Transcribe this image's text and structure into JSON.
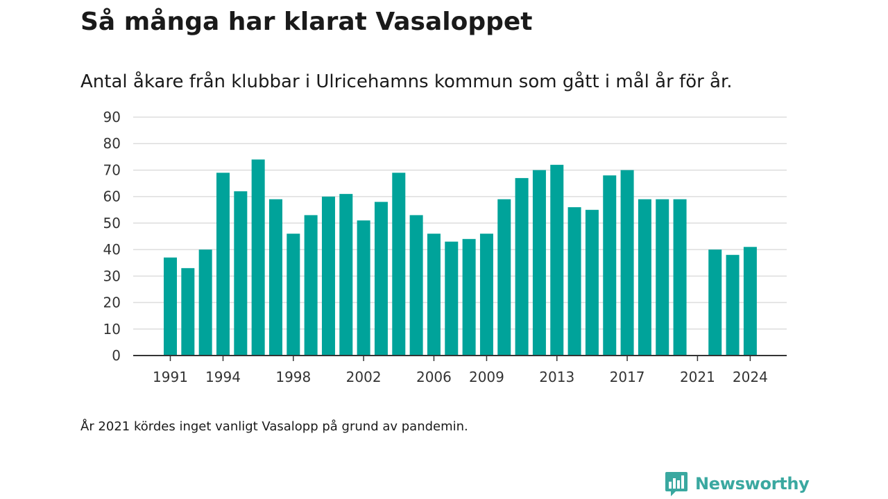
{
  "title": "Så många har klarat Vasaloppet",
  "subtitle": "Antal åkare från klubbar i Ulricehamns kommun som gått i mål år för år.",
  "note": "År 2021 kördes inget vanligt Vasalopp på grund av pandemin.",
  "brand": {
    "name": "Newsworthy",
    "logo_icon": "bar-chart-speech-bubble-icon"
  },
  "colors": {
    "bar": "#00a39a",
    "grid": "#dddddd",
    "axis": "#333333",
    "brand": "#3aa8a0"
  },
  "chart_data": {
    "type": "bar",
    "x": [
      1991,
      1992,
      1993,
      1994,
      1995,
      1996,
      1997,
      1998,
      1999,
      2000,
      2001,
      2002,
      2003,
      2004,
      2005,
      2006,
      2007,
      2008,
      2009,
      2010,
      2011,
      2012,
      2013,
      2014,
      2015,
      2016,
      2017,
      2018,
      2019,
      2020,
      2021,
      2022,
      2023,
      2024
    ],
    "values": [
      37,
      33,
      40,
      69,
      62,
      74,
      59,
      46,
      53,
      60,
      61,
      51,
      58,
      69,
      53,
      46,
      43,
      44,
      46,
      59,
      67,
      70,
      72,
      56,
      55,
      68,
      70,
      59,
      59,
      59,
      null,
      40,
      38,
      41
    ],
    "x_tick_labels": [
      "1991",
      "1994",
      "1998",
      "2002",
      "2006",
      "2009",
      "2013",
      "2017",
      "2021",
      "2024"
    ],
    "y_ticks": [
      "0",
      "10",
      "20",
      "30",
      "40",
      "50",
      "60",
      "70",
      "80",
      "90"
    ],
    "ylim": [
      0,
      90
    ],
    "grid": true,
    "legend": "none",
    "title": "Så många har klarat Vasaloppet",
    "subtitle": "Antal åkare från klubbar i Ulricehamns kommun som gått i mål år för år.",
    "xlabel": "",
    "ylabel": ""
  }
}
